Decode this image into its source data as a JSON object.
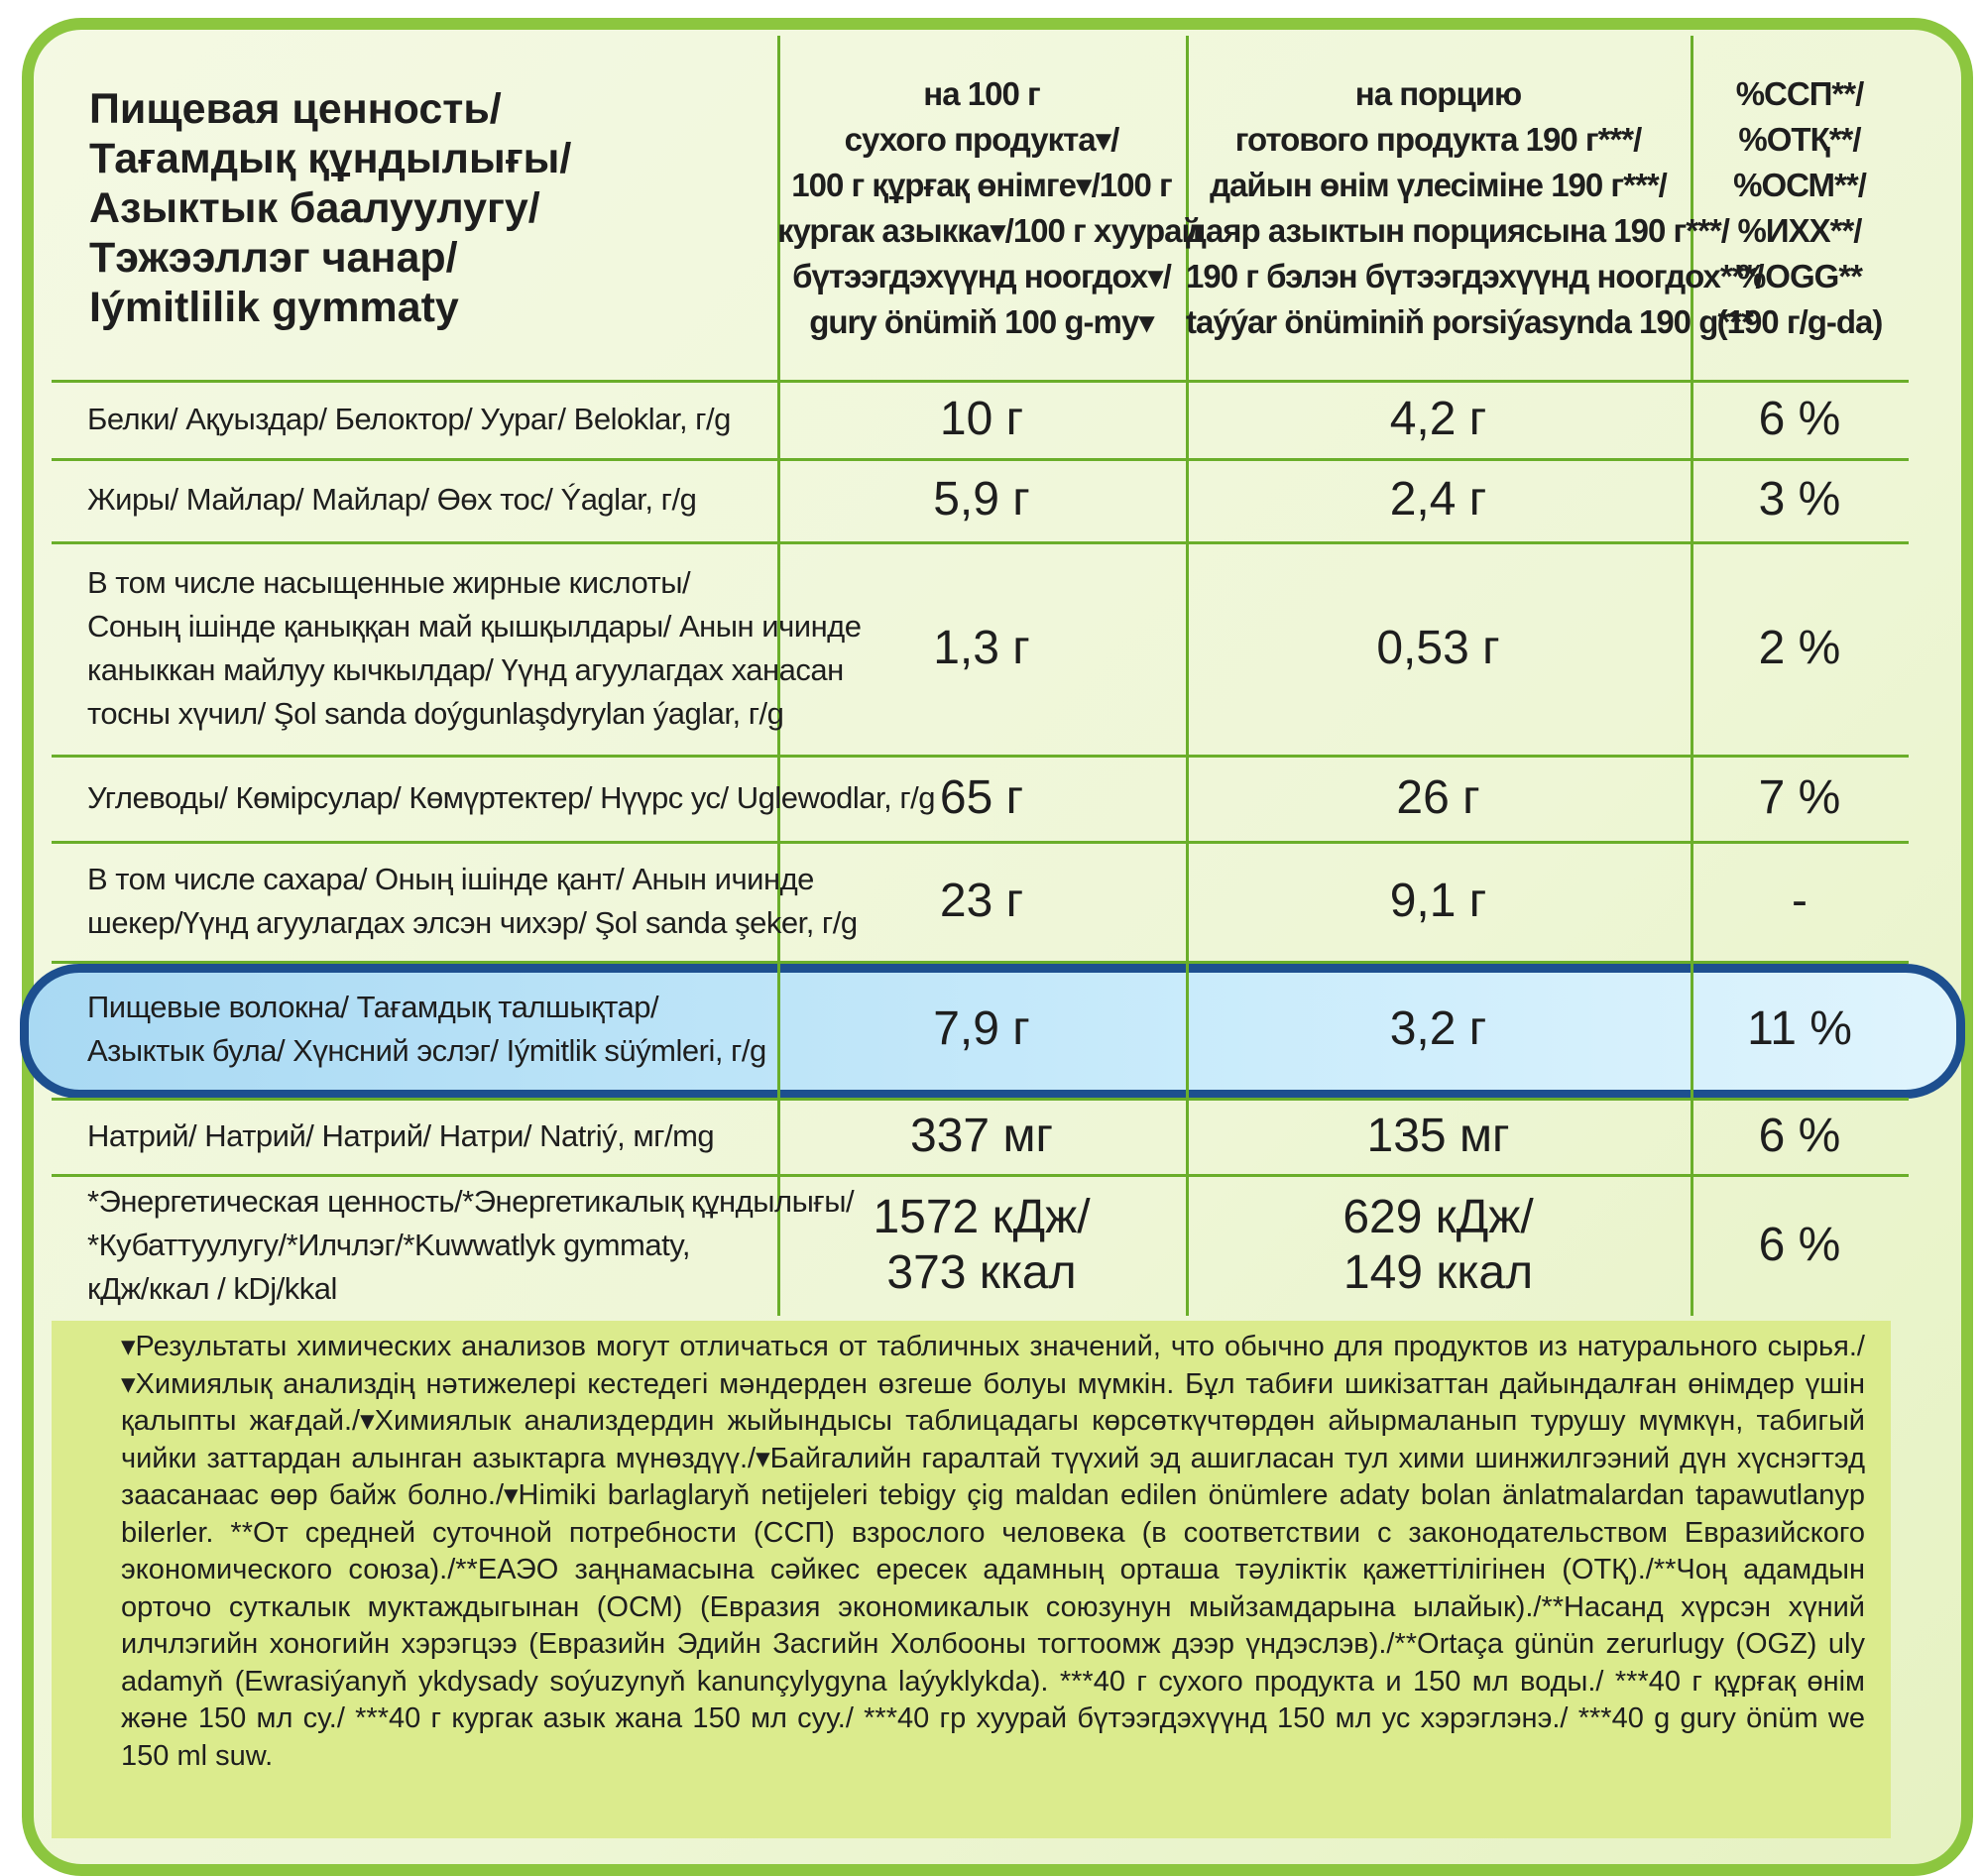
{
  "header": {
    "title": [
      "Пищевая ценность/",
      "Тағамдық құндылығы/",
      "Азыктык баалуулугу/",
      "Тэжээллэг чанар/",
      "Iýmitlilik gymmaty"
    ],
    "columns": [
      [
        "на 100 г",
        "сухого продукта▾/",
        "100 г құрғақ өнімге▾/100 г",
        "кургак азыкка▾/100 г хуурай",
        "бүтээгдэхүүнд ноогдох▾/",
        "gury önümiň 100 g-my▾"
      ],
      [
        "на порцию",
        "готового продукта 190 г***/",
        "дайын өнім үлесіміне 190 г***/",
        "даяр азыктын порциясына 190 г***/",
        "190 г бэлэн бүтээгдэхүүнд ноогдох***/",
        "taýýar önüminiň porsiýasynda 190 g***"
      ],
      [
        "%ССП**/",
        "%ОТҚ**/",
        "%ОСМ**/",
        "%ИХХ**/",
        "%OGG**",
        "(190 г/g-da)"
      ]
    ]
  },
  "rows": [
    [
      [
        "Белки/ Ақуыздар/ Белоктор/ Уураг/ Beloklar, г/g"
      ],
      [
        "10 г"
      ],
      [
        "4,2 г"
      ],
      [
        "6 %"
      ]
    ],
    [
      [
        "Жиры/ Майлар/ Майлар/ Өөх тос/ Ýaglar, г/g"
      ],
      [
        "5,9 г"
      ],
      [
        "2,4 г"
      ],
      [
        "3 %"
      ]
    ],
    [
      [
        "В том числе насыщенные жирные кислоты/",
        "Соның ішінде қаныққан май қышқылдары/ Анын ичинде",
        "каныккан майлуу кычкылдар/ Үүнд агуулагдах ханасан",
        "тосны хүчил/ Şol sanda doýgunlaşdyrylan ýaglar, г/g"
      ],
      [
        "1,3 г"
      ],
      [
        "0,53 г"
      ],
      [
        "2 %"
      ]
    ],
    [
      [
        "Углеводы/ Көмірсулар/ Көмүртектер/ Нүүрс ус/ Uglewodlar, г/g"
      ],
      [
        "65 г"
      ],
      [
        "26 г"
      ],
      [
        "7 %"
      ]
    ],
    [
      [
        "В том числе сахара/ Оның ішінде қант/ Анын ичинде",
        "шекер/Үүнд агуулагдах элсэн чихэр/ Şol sanda şeker, г/g"
      ],
      [
        "23 г"
      ],
      [
        "9,1 г"
      ],
      [
        "-"
      ]
    ],
    [
      [
        "Пищевые волокна/ Тағамдық талшықтар/",
        "Азыктык була/ Хүнсний эслэг/ Iýmitlik süýmleri, г/g"
      ],
      [
        "7,9  г"
      ],
      [
        "3,2 г"
      ],
      [
        "11 %"
      ]
    ],
    [
      [
        "Натрий/ Натрий/ Натрий/ Натри/ Natriý, мг/mg"
      ],
      [
        "337 мг"
      ],
      [
        "135 мг"
      ],
      [
        "6 %"
      ]
    ],
    [
      [
        "*Энергетическая ценность/*Энергетикалық құндылығы/",
        "*Кубаттуулугу/*Илчлэг/*Kuwwatlyk gymmaty,",
        "кДж/ккал / kDj/kkal"
      ],
      [
        "1572 кДж/",
        "373 ккал"
      ],
      [
        "629 кДж/",
        "149 ккал"
      ],
      [
        "6 %"
      ]
    ]
  ],
  "footnote": "▾Результаты химических анализов могут отличаться от табличных значений, что обычно для продуктов из натурального сырья./▾Химиялық анализдің нәтижелері кестедегі мәндерден өзгеше болуы мүмкін. Бұл табиғи шикізаттан дайындалған өнімдер үшін қалыпты жағдай./▾Химиялык анализдердин жыйындысы таблицадагы көрсөткүчтөрдөн айырмаланып турушу мүмкүн, табигый чийки заттардан алынган азыктарга мүнөздүү./▾Байгалийн гаралтай түүхий эд ашигласан тул хими шинжилгээний дүн хүснэгтэд заасанаас өөр байж болно./▾Himiki barlaglaryň netijeleri tebigy çig maldan edilen önümlere adaty bolan änlatmalardan tapawutlanyp bilerler. **От средней суточной потребности (ССП) взрослого человека (в соответствии с законодательством Евразийского экономического союза)./**ЕАЭО заңнамасына сәйкес ересек адамның орташа тәуліктік қажеттілігінен (ОТҚ)./**Чоң адамдын орточо суткалык муктаждыгынан (ОСМ) (Евразия экономикалык союзунун мыйзамдарына ылайык)./**Насанд хүрсэн хүний илчлэгийн хоногийн хэрэгцээ (Евразийн Эдийн Засгийн Холбооны тогтоомж дээр үндэслэв)./**Ortaça günün zerurlugy (OGZ) uly adamyň (Ewrasiýanyň ykdysady soýuzynyň kanunçylygyna laýyklykda). ***40 г сухого продукта и 150 мл воды./ ***40 г құрғақ өнім және 150 мл су./ ***40 г кургак азык жана 150 мл суу./ ***40 гр хуурай бүтээгдэхүүнд 150 мл ус хэрэглэнэ./ ***40 g gury önüm we 150 ml suw."
}
